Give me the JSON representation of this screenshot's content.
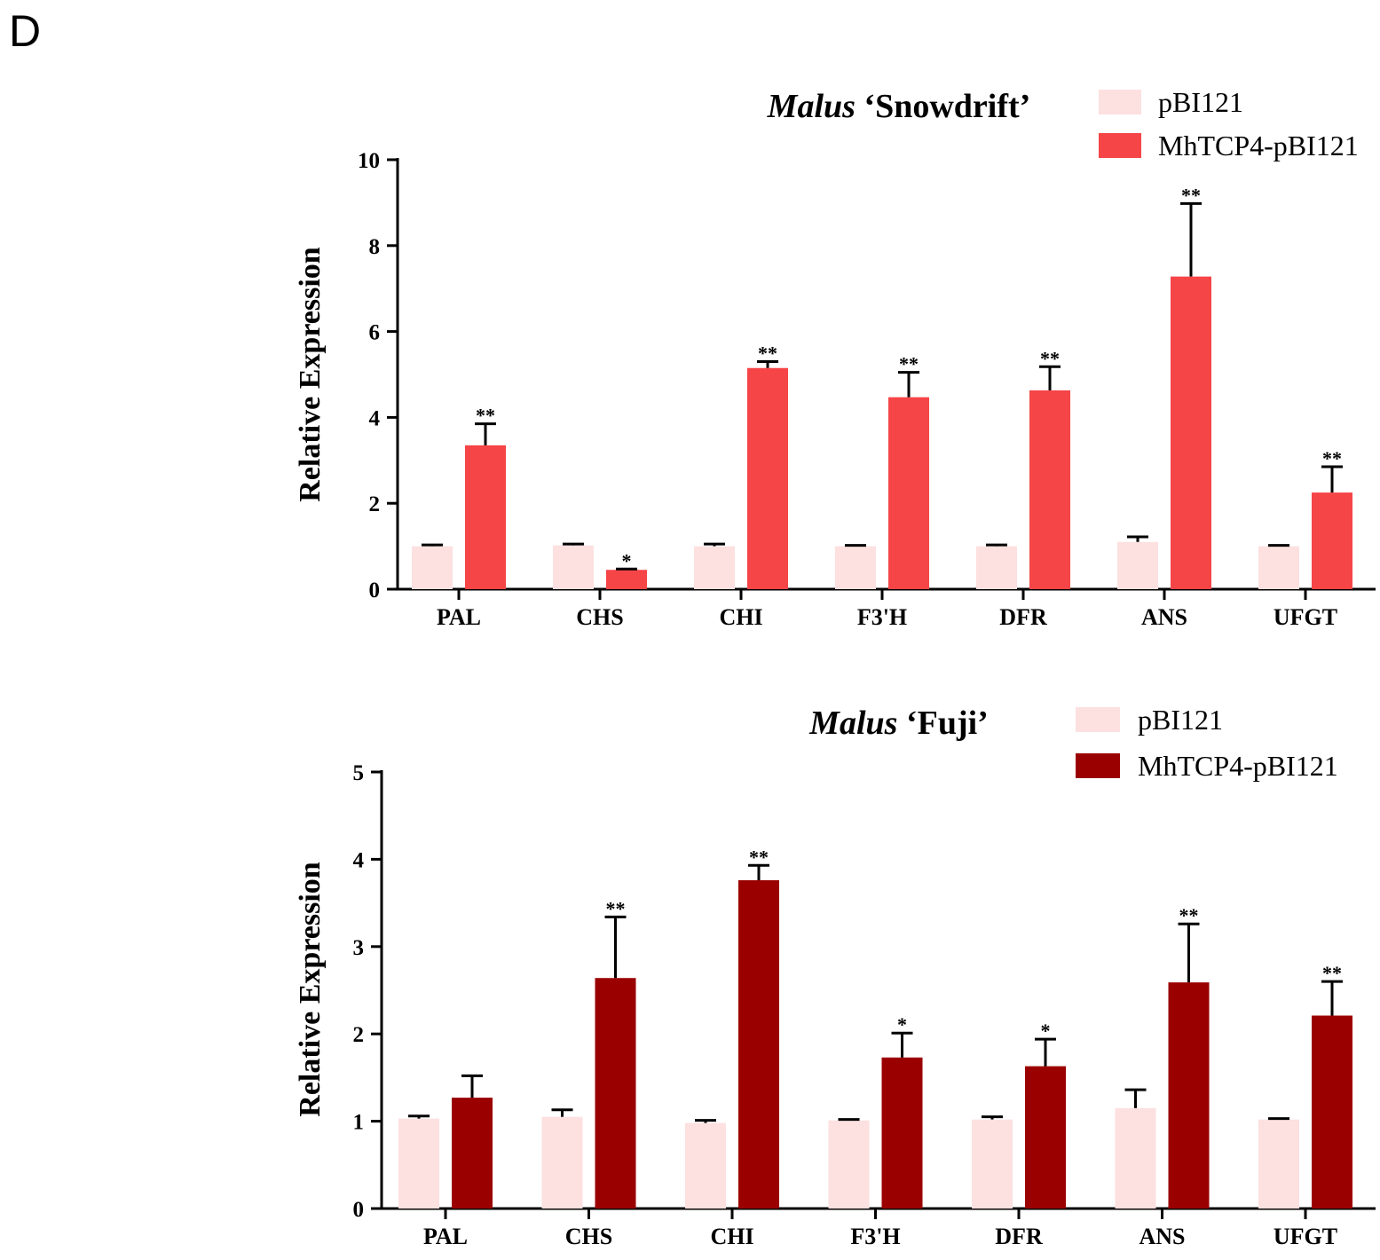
{
  "panel_label": "D",
  "chart_data": [
    {
      "type": "bar",
      "title_italic": "Malus",
      "title_rest": " ‘Snowdrift’",
      "ylabel": "Relative Expression",
      "xlabel": "",
      "ylim": [
        0,
        10
      ],
      "yticks": [
        0,
        2,
        4,
        6,
        8,
        10
      ],
      "categories": [
        "PAL",
        "CHS",
        "CHI",
        "F3'H",
        "DFR",
        "ANS",
        "UFGT"
      ],
      "legend_position": "top-right",
      "series": [
        {
          "name": "pBI121",
          "color": "#fde0e0",
          "values": [
            1.0,
            1.02,
            1.0,
            1.0,
            1.0,
            1.1,
            1.0
          ],
          "errors": [
            0.03,
            0.03,
            0.05,
            0.02,
            0.03,
            0.12,
            0.02
          ],
          "marks": [
            "",
            "",
            "",
            "",
            "",
            "",
            ""
          ]
        },
        {
          "name": "MhTCP4-pBI121",
          "color": "#f54547",
          "values": [
            3.35,
            0.45,
            5.15,
            4.47,
            4.63,
            7.28,
            2.25
          ],
          "errors": [
            0.5,
            0.02,
            0.15,
            0.58,
            0.55,
            1.7,
            0.6
          ],
          "marks": [
            "**",
            "*",
            "**",
            "**",
            "**",
            "**",
            "**"
          ]
        }
      ]
    },
    {
      "type": "bar",
      "title_italic": "Malus",
      "title_rest": " ‘Fuji’",
      "ylabel": "Relative Expression",
      "xlabel": "",
      "ylim": [
        0,
        5
      ],
      "yticks": [
        0,
        1,
        2,
        3,
        4,
        5
      ],
      "categories": [
        "PAL",
        "CHS",
        "CHI",
        "F3'H",
        "DFR",
        "ANS",
        "UFGT"
      ],
      "legend_position": "top-right",
      "series": [
        {
          "name": "pBI121",
          "color": "#fde0e0",
          "values": [
            1.03,
            1.05,
            0.98,
            1.01,
            1.02,
            1.15,
            1.02
          ],
          "errors": [
            0.03,
            0.08,
            0.03,
            0.01,
            0.03,
            0.21,
            0.01
          ],
          "marks": [
            "",
            "",
            "",
            "",
            "",
            "",
            ""
          ]
        },
        {
          "name": "MhTCP4-pBI121",
          "color": "#9b0000",
          "values": [
            1.27,
            2.64,
            3.76,
            1.73,
            1.63,
            2.59,
            2.21
          ],
          "errors": [
            0.25,
            0.7,
            0.17,
            0.28,
            0.31,
            0.67,
            0.39
          ],
          "marks": [
            "",
            "**",
            "**",
            "*",
            "*",
            "**",
            "**"
          ]
        }
      ]
    }
  ]
}
